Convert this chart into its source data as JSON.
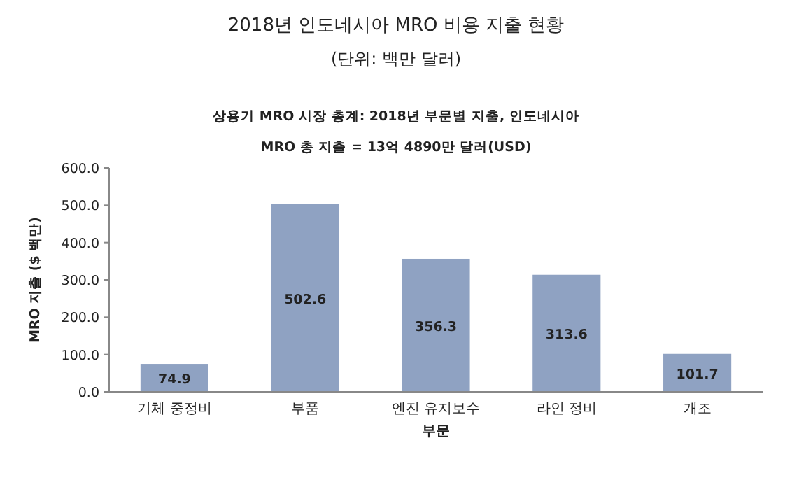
{
  "chart_data": {
    "type": "bar",
    "title": "2018년 인도네시아 MRO 비용 지출 현황",
    "subtitle": "(단위: 백만 달러)",
    "annotations": [
      "상용기 MRO 시장 총계: 2018년 부문별 지출, 인도네시아",
      "MRO 총 지출 = 13억 4890만 달러(USD)"
    ],
    "xlabel": "부문",
    "ylabel": "MRO 지출 ($ 백만)",
    "categories": [
      "기체 중정비",
      "부품",
      "엔진 유지보수",
      "라인 정비",
      "개조"
    ],
    "values": [
      74.9,
      502.6,
      356.3,
      313.6,
      101.7
    ],
    "color": "#8fa2c2",
    "ylim": [
      0,
      600
    ],
    "yticks": [
      {
        "value": 0,
        "label": "0.0"
      },
      {
        "value": 100,
        "label": "100.0"
      },
      {
        "value": 200,
        "label": "200.0"
      },
      {
        "value": 300,
        "label": "300.0"
      },
      {
        "value": 400,
        "label": "400.0"
      },
      {
        "value": 500,
        "label": "500.0"
      },
      {
        "value": 600,
        "label": "600.0"
      }
    ],
    "data_labels": true
  }
}
